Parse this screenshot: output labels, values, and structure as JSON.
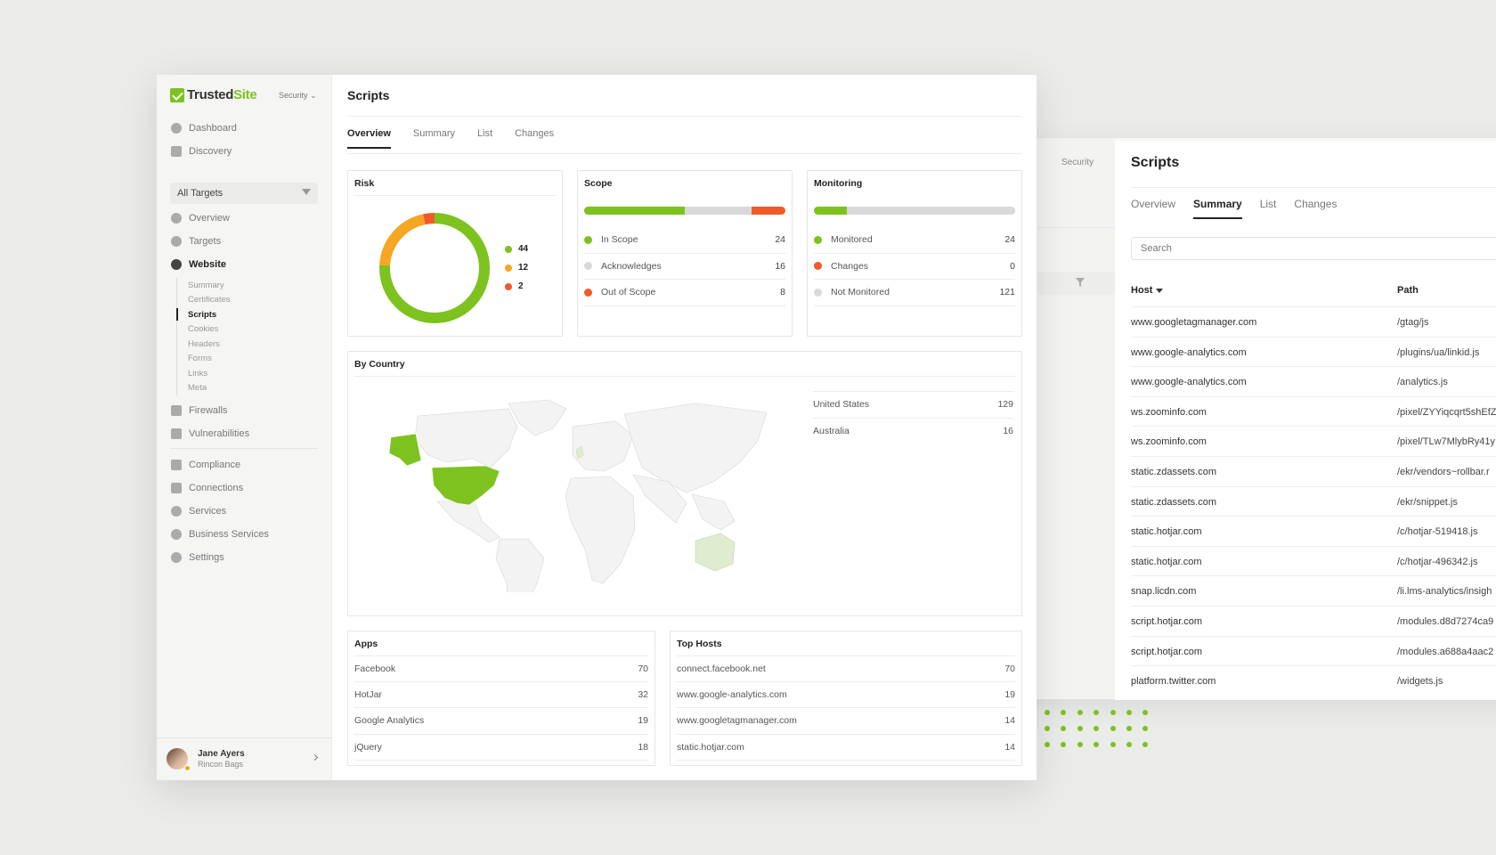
{
  "app": {
    "brand_trusted": "Trusted",
    "brand_site": "Site",
    "security_label": "Security"
  },
  "sidebar": {
    "top_items": [
      {
        "label": "Dashboard",
        "icon": "dashboard-icon"
      },
      {
        "label": "Discovery",
        "icon": "map-icon"
      }
    ],
    "all_targets": "All Targets",
    "target_items": [
      {
        "label": "Overview",
        "icon": "dashboard-icon"
      },
      {
        "label": "Targets",
        "icon": "target-icon"
      },
      {
        "label": "Website",
        "icon": "globe-icon"
      }
    ],
    "website_sub": [
      "Summary",
      "Certificates",
      "Scripts",
      "Cookies",
      "Headers",
      "Forms",
      "Links",
      "Meta"
    ],
    "security_items": [
      {
        "label": "Firewalls",
        "icon": "firewall-icon"
      },
      {
        "label": "Vulnerabilities",
        "icon": "bolt-icon"
      }
    ],
    "bottom_items": [
      {
        "label": "Compliance",
        "icon": "card-icon"
      },
      {
        "label": "Connections",
        "icon": "connections-icon"
      },
      {
        "label": "Services",
        "icon": "user-icon"
      },
      {
        "label": "Business Services",
        "icon": "user-icon"
      },
      {
        "label": "Settings",
        "icon": "gear-icon"
      }
    ],
    "user": {
      "name": "Jane Ayers",
      "org": "Rincon Bags"
    }
  },
  "page": {
    "title": "Scripts",
    "tabs": [
      "Overview",
      "Summary",
      "List",
      "Changes"
    ]
  },
  "risk": {
    "title": "Risk",
    "segments": [
      {
        "value": 44,
        "color": "#7dc21e"
      },
      {
        "value": 12,
        "color": "#f5a623"
      },
      {
        "value": 2,
        "color": "#f05a28"
      }
    ]
  },
  "scope": {
    "title": "Scope",
    "rows": [
      {
        "label": "In Scope",
        "value": "24",
        "color": "#7dc21e"
      },
      {
        "label": "Acknowledges",
        "value": "16",
        "color": "#d9d9d9"
      },
      {
        "label": "Out of Scope",
        "value": "8",
        "color": "#f05a28"
      }
    ]
  },
  "monitoring": {
    "title": "Monitoring",
    "rows": [
      {
        "label": "Monitored",
        "value": "24",
        "color": "#7dc21e"
      },
      {
        "label": "Changes",
        "value": "0",
        "color": "#f05a28"
      },
      {
        "label": "Not Monitored",
        "value": "121",
        "color": "#d9d9d9"
      }
    ]
  },
  "by_country": {
    "title": "By Country",
    "rows": [
      {
        "country": "United States",
        "value": "129"
      },
      {
        "country": "Australia",
        "value": "16"
      }
    ]
  },
  "apps": {
    "title": "Apps",
    "rows": [
      {
        "label": "Facebook",
        "value": "70"
      },
      {
        "label": "HotJar",
        "value": "32"
      },
      {
        "label": "Google Analytics",
        "value": "19"
      },
      {
        "label": "jQuery",
        "value": "18"
      }
    ]
  },
  "top_hosts": {
    "title": "Top Hosts",
    "rows": [
      {
        "label": "connect.facebook.net",
        "value": "70"
      },
      {
        "label": "www.google-analytics.com",
        "value": "19"
      },
      {
        "label": "www.googletagmanager.com",
        "value": "14"
      },
      {
        "label": "static.hotjar.com",
        "value": "14"
      }
    ]
  },
  "right_panel": {
    "security_label": "Security",
    "title": "Scripts",
    "tabs": [
      "Overview",
      "Summary",
      "List",
      "Changes"
    ],
    "search_placeholder": "Search",
    "col_host": "Host",
    "col_path": "Path",
    "rows": [
      {
        "host": "www.googletagmanager.com",
        "path": "/gtag/js"
      },
      {
        "host": "www.google-analytics.com",
        "path": "/plugins/ua/linkid.js"
      },
      {
        "host": "www.google-analytics.com",
        "path": "/analytics.js"
      },
      {
        "host": "ws.zoominfo.com",
        "path": "/pixel/ZYYiqcqrt5shEfZ"
      },
      {
        "host": "ws.zoominfo.com",
        "path": "/pixel/TLw7MlybRy41y"
      },
      {
        "host": "static.zdassets.com",
        "path": "/ekr/vendors~rollbar.r"
      },
      {
        "host": "static.zdassets.com",
        "path": "/ekr/snippet.js"
      },
      {
        "host": "static.hotjar.com",
        "path": "/c/hotjar-519418.js"
      },
      {
        "host": "static.hotjar.com",
        "path": "/c/hotjar-496342.js"
      },
      {
        "host": "snap.licdn.com",
        "path": "/li.lms-analytics/insigh"
      },
      {
        "host": "script.hotjar.com",
        "path": "/modules.d8d7274ca9"
      },
      {
        "host": "script.hotjar.com",
        "path": "/modules.a688a4aac2"
      },
      {
        "host": "platform.twitter.com",
        "path": "/widgets.js"
      }
    ]
  }
}
